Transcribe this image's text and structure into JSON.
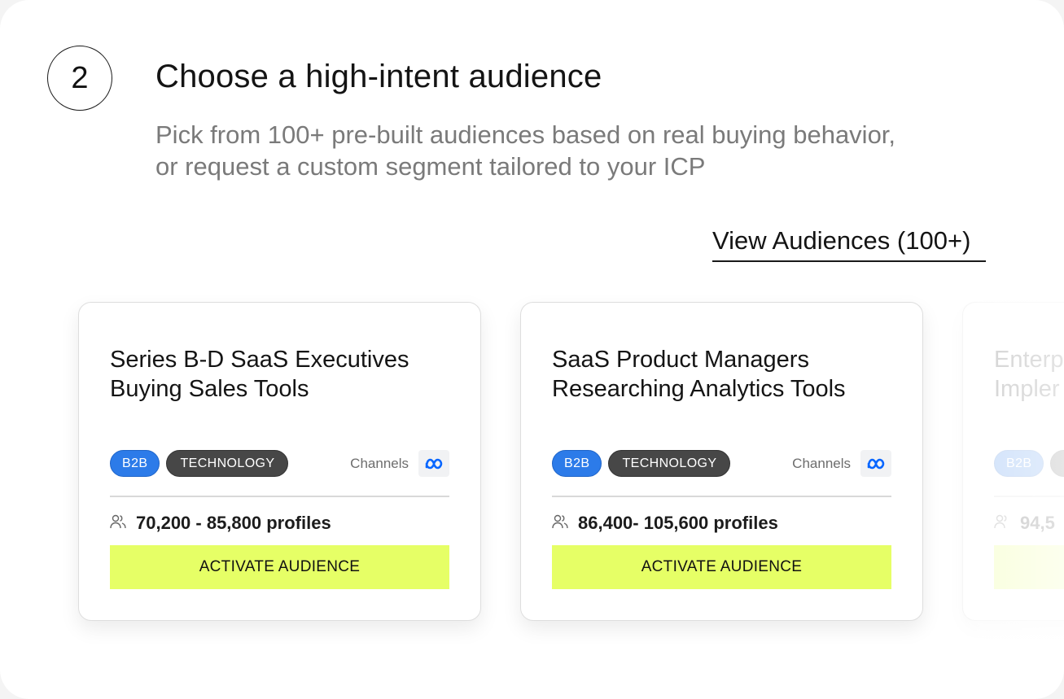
{
  "step": {
    "number": "2",
    "title": "Choose a high-intent audience",
    "description_line1": "Pick from 100+ pre-built audiences based on real buying behavior,",
    "description_line2": "or request a custom segment tailored to your ICP"
  },
  "view_link": "View Audiences (100+)",
  "cards": [
    {
      "title_line1": "Series B-D SaaS Executives",
      "title_line2": "Buying Sales Tools",
      "tags": [
        "B2B",
        "TECHNOLOGY"
      ],
      "channels_label": "Channels",
      "channel_icon": "meta-icon",
      "profiles": "70,200 - 85,800 profiles",
      "button": "ACTIVATE AUDIENCE"
    },
    {
      "title_line1": "SaaS Product Managers",
      "title_line2": "Researching Analytics Tools",
      "tags": [
        "B2B",
        "TECHNOLOGY"
      ],
      "channels_label": "Channels",
      "channel_icon": "meta-icon",
      "profiles": "86,400- 105,600 profiles",
      "button": "ACTIVATE AUDIENCE"
    },
    {
      "title_line1": "Enterp",
      "title_line2": "Impler",
      "tags": [
        "B2B"
      ],
      "profiles": "94,5"
    }
  ],
  "colors": {
    "accent_button": "#e6ff66",
    "tag_b2b": "#2c7be9",
    "tag_technology": "#474747",
    "meta_blue": "#0866ff"
  }
}
